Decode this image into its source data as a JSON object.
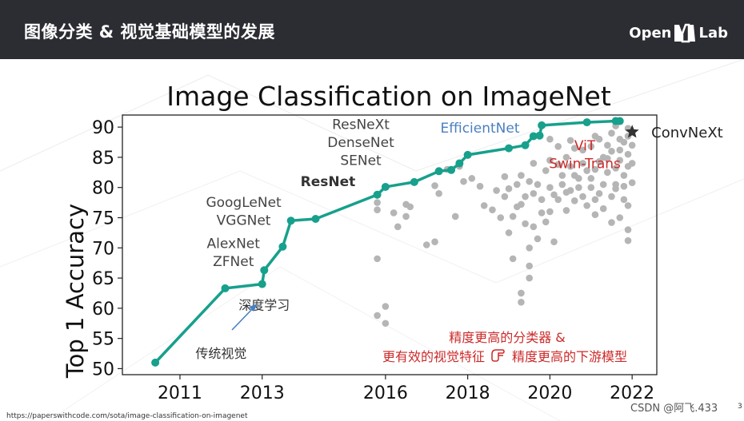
{
  "header": {
    "title": "图像分类 & 视觉基础模型的发展",
    "logo_left": "Open",
    "logo_right": "Lab"
  },
  "footer": {
    "source_url": "https://paperswithcode.com/sota/image-classification-on-imagenet",
    "watermark": "CSDN @阿飞.433",
    "page_number": "3"
  },
  "colors": {
    "header_bg": "#2b2d33",
    "frontier": "#17a08c",
    "scatter": "#b5b5b5",
    "blue_label": "#4a7fc1",
    "red_label": "#cc2a2a",
    "star": "#333333"
  },
  "chart_data": {
    "type": "line",
    "title": "Image Classification on ImageNet",
    "ylabel": "Top 1 Accuracy",
    "xlabel": "",
    "xlim": [
      2009.6,
      2022.6
    ],
    "ylim": [
      49,
      92
    ],
    "x_ticks": [
      2011,
      2013,
      2016,
      2018,
      2020,
      2022
    ],
    "y_ticks": [
      50,
      55,
      60,
      65,
      70,
      75,
      80,
      85,
      90
    ],
    "x_tick_labels": [
      "2011",
      "2013",
      "2016",
      "2018",
      "2020",
      "2022"
    ],
    "y_tick_labels": [
      "50",
      "55",
      "60",
      "65",
      "70",
      "75",
      "80",
      "85",
      "90"
    ],
    "frontier": {
      "x": [
        2010.4,
        2012.1,
        2013.0,
        2013.05,
        2013.5,
        2013.7,
        2014.3,
        2015.8,
        2016.0,
        2016.7,
        2017.3,
        2017.6,
        2017.8,
        2018.0,
        2019.0,
        2019.4,
        2019.6,
        2019.75,
        2019.8,
        2020.9,
        2021.6,
        2021.7
      ],
      "y": [
        51.0,
        63.3,
        64.0,
        66.3,
        70.2,
        74.5,
        74.8,
        78.8,
        80.1,
        80.9,
        82.7,
        82.9,
        84.0,
        85.4,
        86.5,
        87.0,
        88.5,
        88.6,
        90.3,
        90.8,
        91.0,
        91.0
      ]
    },
    "scatter_points": [
      [
        2015.8,
        58.8
      ],
      [
        2016.0,
        60.3
      ],
      [
        2016.0,
        57.5
      ],
      [
        2015.8,
        68.2
      ],
      [
        2015.8,
        76.3
      ],
      [
        2015.8,
        77.5
      ],
      [
        2016.2,
        75.8
      ],
      [
        2016.3,
        73.5
      ],
      [
        2016.5,
        77.2
      ],
      [
        2016.5,
        75.2
      ],
      [
        2016.6,
        76.8
      ],
      [
        2017.0,
        70.5
      ],
      [
        2017.2,
        71.0
      ],
      [
        2017.2,
        80.3
      ],
      [
        2017.3,
        79.0
      ],
      [
        2017.5,
        83.0
      ],
      [
        2017.7,
        75.2
      ],
      [
        2017.8,
        83.5
      ],
      [
        2017.9,
        81.0
      ],
      [
        2018.1,
        81.5
      ],
      [
        2018.3,
        80.2
      ],
      [
        2018.4,
        77.0
      ],
      [
        2018.6,
        76.3
      ],
      [
        2018.7,
        79.5
      ],
      [
        2018.8,
        75.0
      ],
      [
        2018.9,
        78.5
      ],
      [
        2019.0,
        72.5
      ],
      [
        2019.1,
        75.2
      ],
      [
        2019.2,
        76.8
      ],
      [
        2019.3,
        77.2
      ],
      [
        2019.4,
        74.0
      ],
      [
        2019.5,
        70.0
      ],
      [
        2019.5,
        67.0
      ],
      [
        2019.5,
        65.0
      ],
      [
        2019.3,
        62.5
      ],
      [
        2019.3,
        61.0
      ],
      [
        2019.1,
        68.2
      ],
      [
        2019.6,
        73.5
      ],
      [
        2019.7,
        71.5
      ],
      [
        2019.8,
        75.8
      ],
      [
        2019.9,
        74.3
      ],
      [
        2020.0,
        76.0
      ],
      [
        2020.1,
        71.0
      ],
      [
        2020.2,
        78.0
      ],
      [
        2020.3,
        80.5
      ],
      [
        2020.4,
        76.2
      ],
      [
        2020.5,
        79.5
      ],
      [
        2020.6,
        82.0
      ],
      [
        2020.7,
        80.0
      ],
      [
        2020.8,
        78.5
      ],
      [
        2020.9,
        77.0
      ],
      [
        2021.0,
        81.5
      ],
      [
        2021.1,
        83.0
      ],
      [
        2021.2,
        79.0
      ],
      [
        2021.3,
        85.0
      ],
      [
        2021.4,
        82.5
      ],
      [
        2021.5,
        86.0
      ],
      [
        2021.6,
        80.5
      ],
      [
        2021.7,
        84.5
      ],
      [
        2021.8,
        87.5
      ],
      [
        2021.8,
        78.0
      ],
      [
        2021.9,
        71.2
      ],
      [
        2021.9,
        73.0
      ],
      [
        2021.9,
        77.0
      ],
      [
        2021.7,
        75.0
      ],
      [
        2021.5,
        74.2
      ],
      [
        2021.1,
        75.5
      ],
      [
        2021.3,
        76.5
      ],
      [
        2020.0,
        84.5
      ],
      [
        2020.2,
        83.8
      ],
      [
        2020.4,
        85.0
      ],
      [
        2020.6,
        86.5
      ],
      [
        2020.8,
        84.0
      ],
      [
        2021.0,
        86.8
      ],
      [
        2021.2,
        88.0
      ],
      [
        2021.5,
        89.0
      ],
      [
        2021.9,
        89.8
      ],
      [
        2021.9,
        88.5
      ],
      [
        2022.0,
        87.0
      ],
      [
        2021.9,
        85.5
      ],
      [
        2021.6,
        83.2
      ],
      [
        2019.3,
        82.0
      ],
      [
        2019.5,
        81.0
      ],
      [
        2019.6,
        84.0
      ],
      [
        2019.7,
        80.5
      ],
      [
        2019.9,
        82.8
      ],
      [
        2020.0,
        80.0
      ],
      [
        2020.3,
        82.0
      ],
      [
        2020.5,
        83.5
      ],
      [
        2020.7,
        81.5
      ],
      [
        2021.0,
        80.0
      ],
      [
        2021.2,
        84.3
      ],
      [
        2021.4,
        87.0
      ],
      [
        2021.7,
        86.2
      ],
      [
        2021.8,
        82.0
      ],
      [
        2022.0,
        80.8
      ],
      [
        2018.9,
        81.8
      ],
      [
        2019.0,
        79.8
      ],
      [
        2019.2,
        80.5
      ],
      [
        2019.4,
        78.5
      ],
      [
        2019.6,
        79.0
      ],
      [
        2019.8,
        78.0
      ],
      [
        2020.1,
        78.8
      ],
      [
        2020.4,
        79.2
      ],
      [
        2020.6,
        77.8
      ],
      [
        2020.9,
        82.8
      ],
      [
        2021.1,
        78.0
      ],
      [
        2021.3,
        80.5
      ],
      [
        2021.5,
        78.5
      ],
      [
        2021.6,
        79.8
      ],
      [
        2021.8,
        80.2
      ],
      [
        2020.0,
        88.0
      ],
      [
        2020.2,
        86.8
      ],
      [
        2020.5,
        87.8
      ],
      [
        2020.8,
        86.2
      ],
      [
        2021.1,
        88.5
      ],
      [
        2021.4,
        84.8
      ],
      [
        2021.7,
        88.0
      ],
      [
        2021.9,
        83.5
      ],
      [
        2022.0,
        84.0
      ],
      [
        2021.6,
        90.2
      ]
    ],
    "star_point": {
      "x": 2022.0,
      "y": 89.2,
      "label": "ConvNeXt"
    },
    "annotations": [
      {
        "text": "AlexNet",
        "x": 2012.3,
        "y": 70.0,
        "style": "gray"
      },
      {
        "text": "ZFNet",
        "x": 2012.3,
        "y": 67.0,
        "style": "gray"
      },
      {
        "text": "GoogLeNet",
        "x": 2012.55,
        "y": 76.8,
        "style": "gray"
      },
      {
        "text": "VGGNet",
        "x": 2012.55,
        "y": 73.8,
        "style": "gray"
      },
      {
        "text": "ResNet",
        "x": 2014.6,
        "y": 80.2,
        "style": "bold"
      },
      {
        "text": "ResNeXt",
        "x": 2015.4,
        "y": 89.7,
        "style": "gray"
      },
      {
        "text": "DenseNet",
        "x": 2015.4,
        "y": 86.7,
        "style": "gray"
      },
      {
        "text": "SENet",
        "x": 2015.4,
        "y": 83.7,
        "style": "gray"
      },
      {
        "text": "EfficientNet",
        "x": 2018.3,
        "y": 89.1,
        "style": "blue"
      },
      {
        "text": "ViT",
        "x": 2020.85,
        "y": 86.2,
        "style": "red"
      },
      {
        "text": "Swin-Trans",
        "x": 2020.85,
        "y": 83.2,
        "style": "red"
      },
      {
        "text": "深度学习",
        "x": 2013.05,
        "y": 59.8,
        "style": "dark"
      },
      {
        "text": "传统视觉",
        "x": 2012.0,
        "y": 51.8,
        "style": "dark"
      }
    ],
    "bottom_text": {
      "line1": "精度更高的分类器 &",
      "line2_a": "更有效的视觉特征",
      "line2_b": "精度更高的下游模型"
    }
  }
}
